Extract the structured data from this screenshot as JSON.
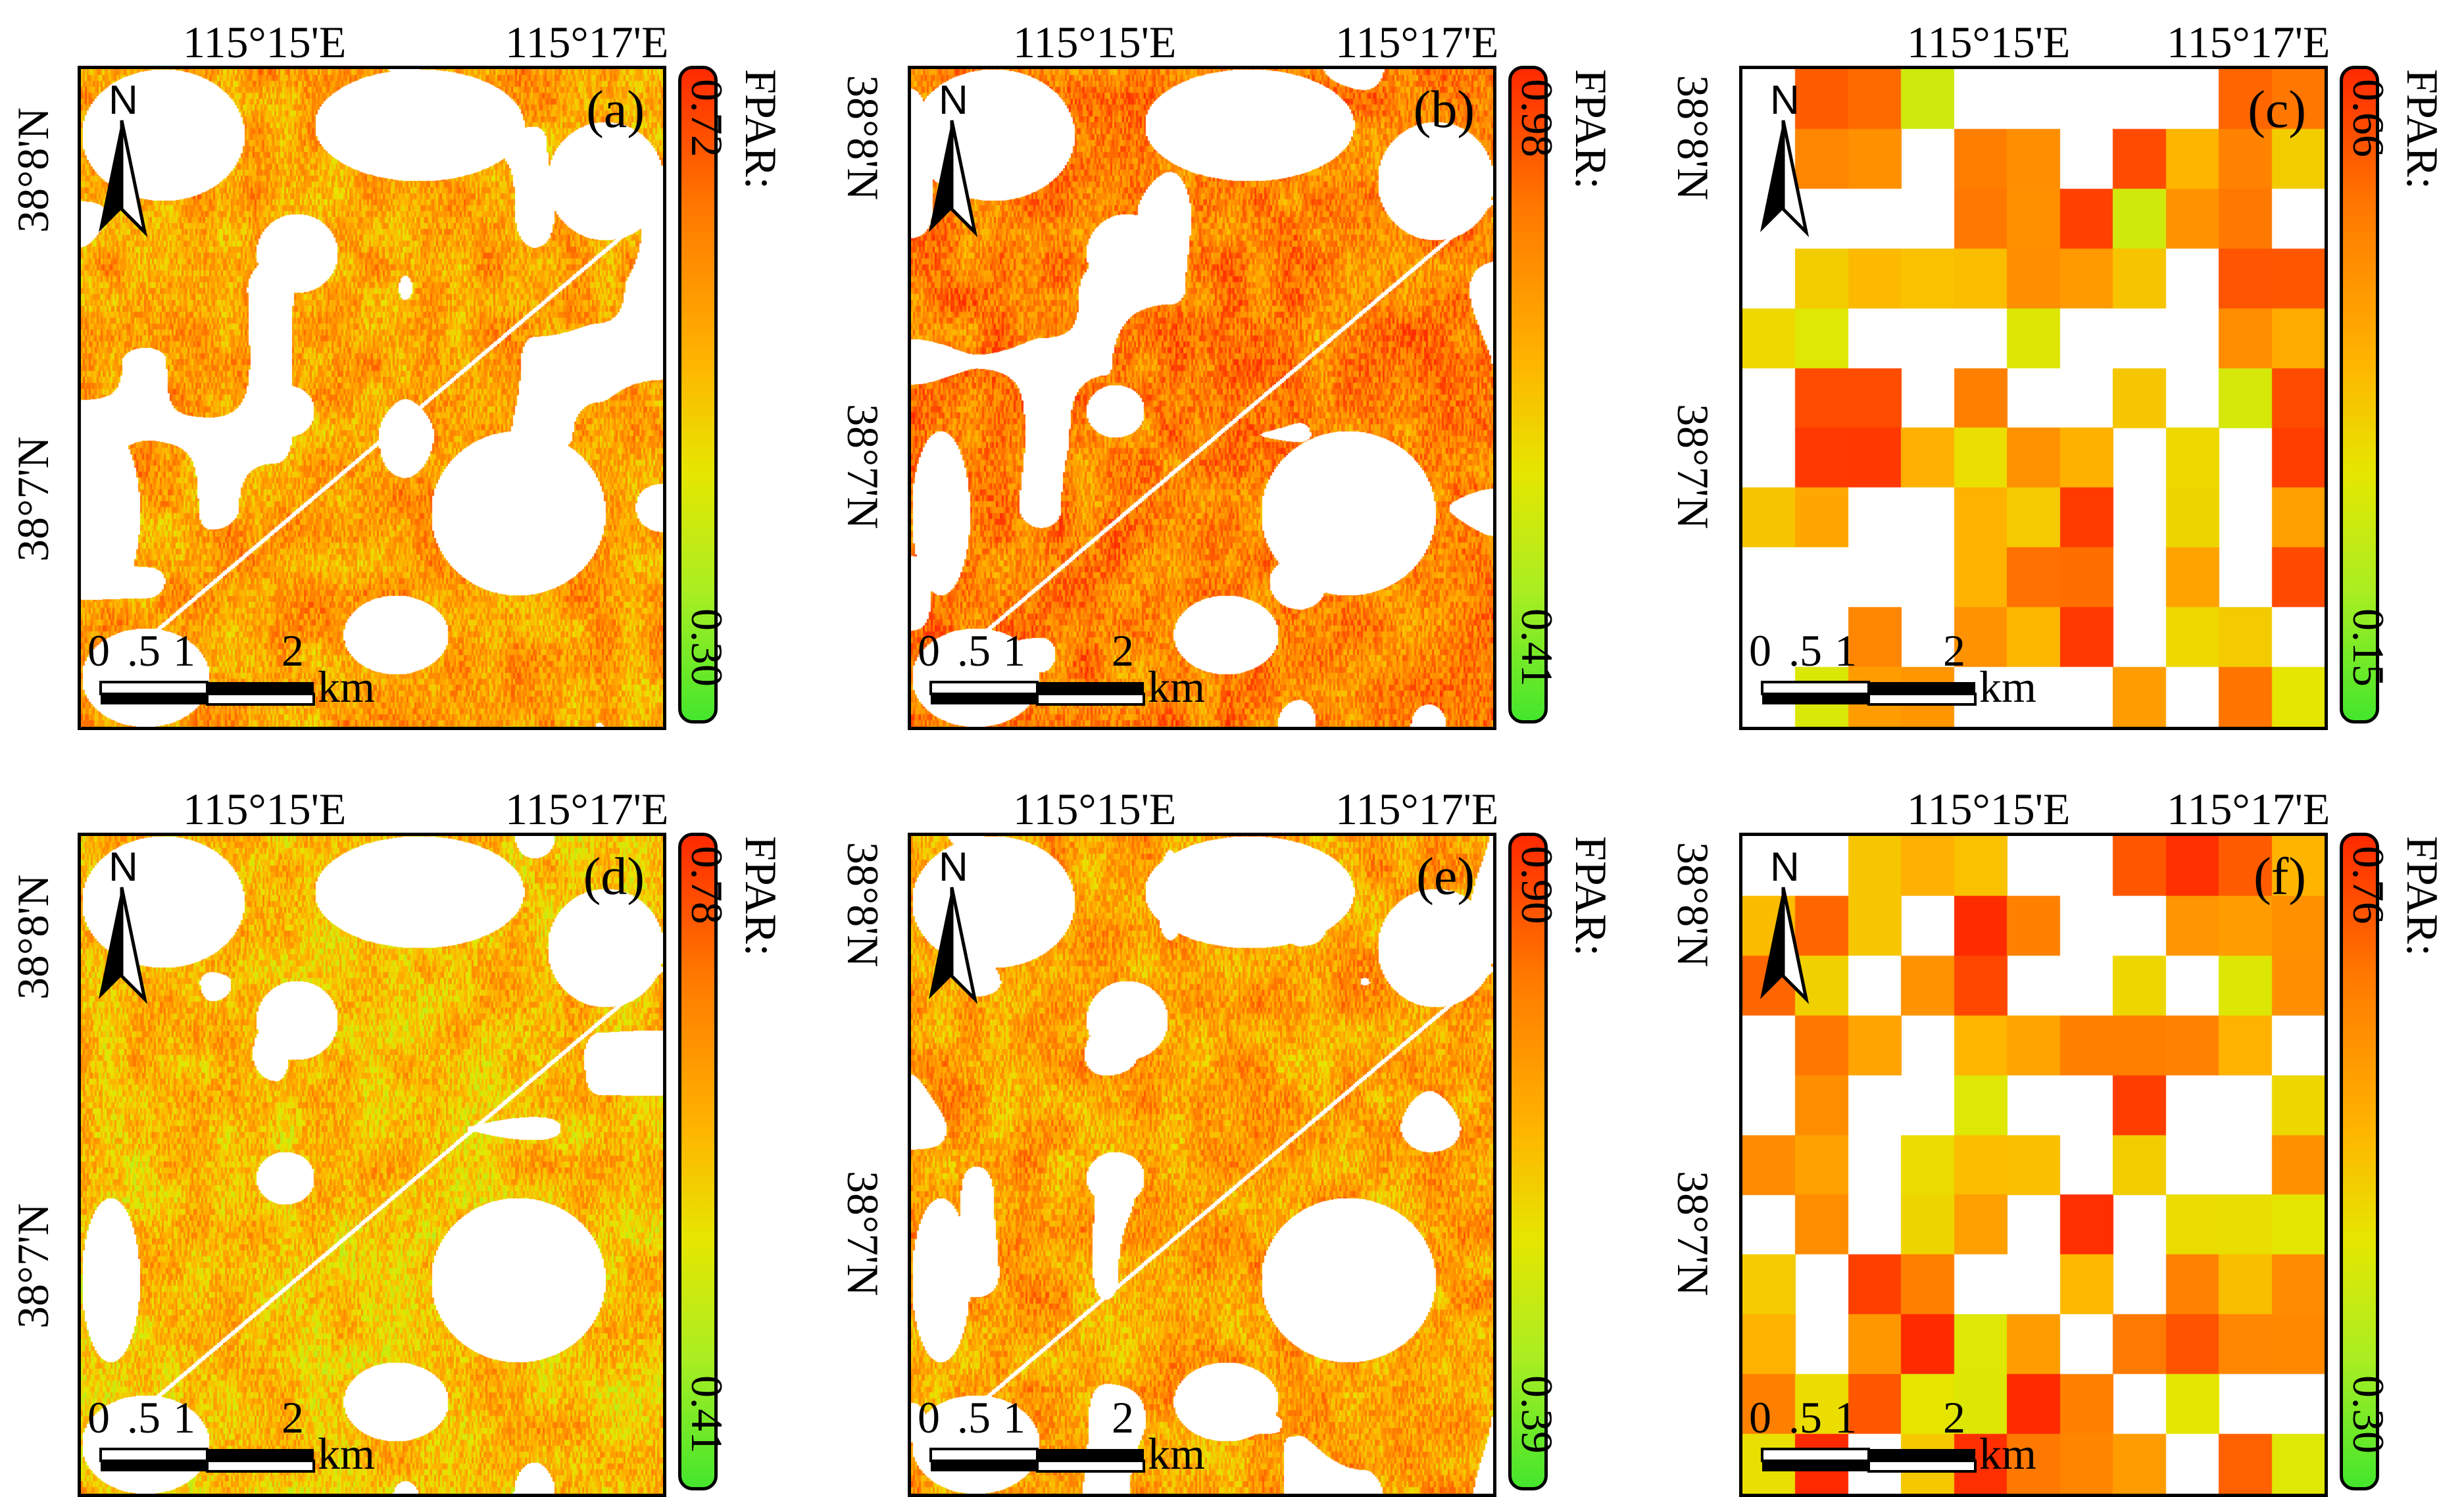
{
  "figure": {
    "legend_title": "FPAR:",
    "lon_labels": [
      "115°15'E",
      "115°17'E"
    ],
    "lat_labels": [
      "38°8'N",
      "38°7'N"
    ],
    "north_label": "N",
    "scale_ticks": [
      "0",
      ".5",
      "1",
      "2"
    ],
    "scale_unit": "km"
  },
  "panels": [
    {
      "label": "(a)",
      "max": "0.72",
      "min": "0.30",
      "resolution": "fine",
      "palette": "mid"
    },
    {
      "label": "(b)",
      "max": "0.98",
      "min": "0.41",
      "resolution": "fine",
      "palette": "high"
    },
    {
      "label": "(c)",
      "max": "0.66",
      "min": "0.15",
      "resolution": "coarse",
      "palette": "coarse1"
    },
    {
      "label": "(d)",
      "max": "0.78",
      "min": "0.41",
      "resolution": "fine",
      "palette": "low"
    },
    {
      "label": "(e)",
      "max": "0.90",
      "min": "0.39",
      "resolution": "fine",
      "palette": "mid"
    },
    {
      "label": "(f)",
      "max": "0.76",
      "min": "0.30",
      "resolution": "coarse",
      "palette": "coarse2"
    }
  ],
  "colors": {
    "ramp_top": "#ff2a00",
    "ramp_bottom": "#44e62c",
    "nodata": "#ffffff"
  }
}
